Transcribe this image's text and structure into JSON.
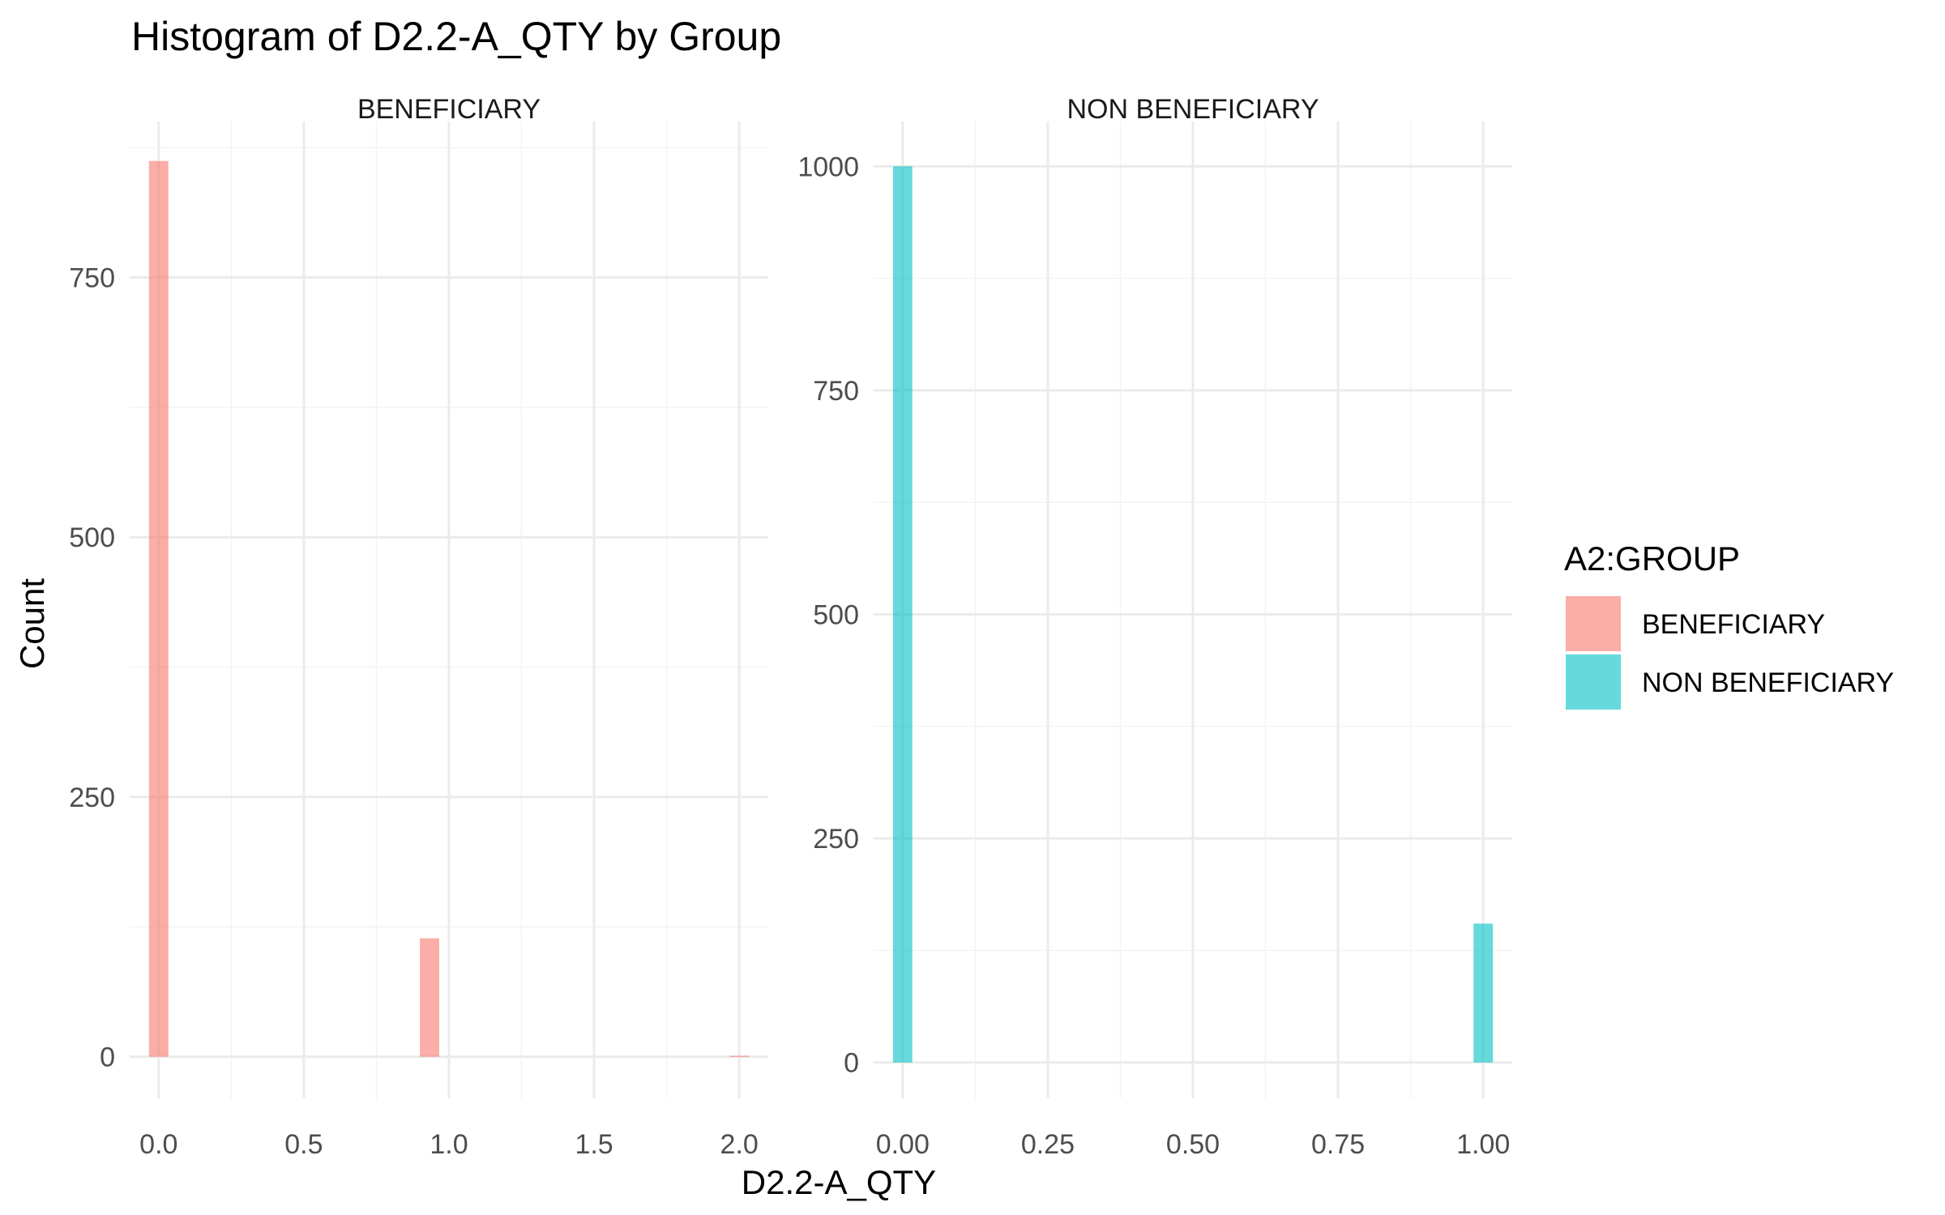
{
  "chart_data": {
    "type": "bar",
    "title": "Histogram of D2.2-A_QTY by Group",
    "xlabel": "D2.2-A_QTY",
    "ylabel": "Count",
    "legend": {
      "title": "A2:GROUP",
      "placement": "right",
      "entries": [
        {
          "label": "BENEFICIARY",
          "color": "#F8766D"
        },
        {
          "label": "NON BENEFICIARY",
          "color": "#00BFC4"
        }
      ]
    },
    "grid": true,
    "bar_opacity": 0.6,
    "panels": [
      {
        "name": "BENEFICIARY",
        "color": "#F8766D",
        "xlim": [
          -0.1,
          2.1
        ],
        "ylim": [
          -40,
          900
        ],
        "x_ticks": [
          0,
          0.5,
          1,
          1.5,
          2
        ],
        "x_tick_labels": [
          "0.0",
          "0.5",
          "1.0",
          "1.5",
          "2.0"
        ],
        "y_ticks": [
          0,
          250,
          500,
          750
        ],
        "y_tick_labels": [
          "0",
          "250",
          "500",
          "750"
        ],
        "bin_width": 0.0667,
        "bars": [
          {
            "x": 0,
            "count": 862
          },
          {
            "x": 0.933,
            "count": 114
          },
          {
            "x": 2,
            "count": 1
          }
        ]
      },
      {
        "name": "NON BENEFICIARY",
        "color": "#00BFC4",
        "xlim": [
          -0.05,
          1.05
        ],
        "ylim": [
          -40,
          1050
        ],
        "x_ticks": [
          0,
          0.25,
          0.5,
          0.75,
          1
        ],
        "x_tick_labels": [
          "0.00",
          "0.25",
          "0.50",
          "0.75",
          "1.00"
        ],
        "y_ticks": [
          0,
          250,
          500,
          750,
          1000
        ],
        "y_tick_labels": [
          "0",
          "250",
          "500",
          "750",
          "1000"
        ],
        "bin_width": 0.0333,
        "bars": [
          {
            "x": 0,
            "count": 1000
          },
          {
            "x": 1,
            "count": 155
          }
        ]
      }
    ]
  }
}
